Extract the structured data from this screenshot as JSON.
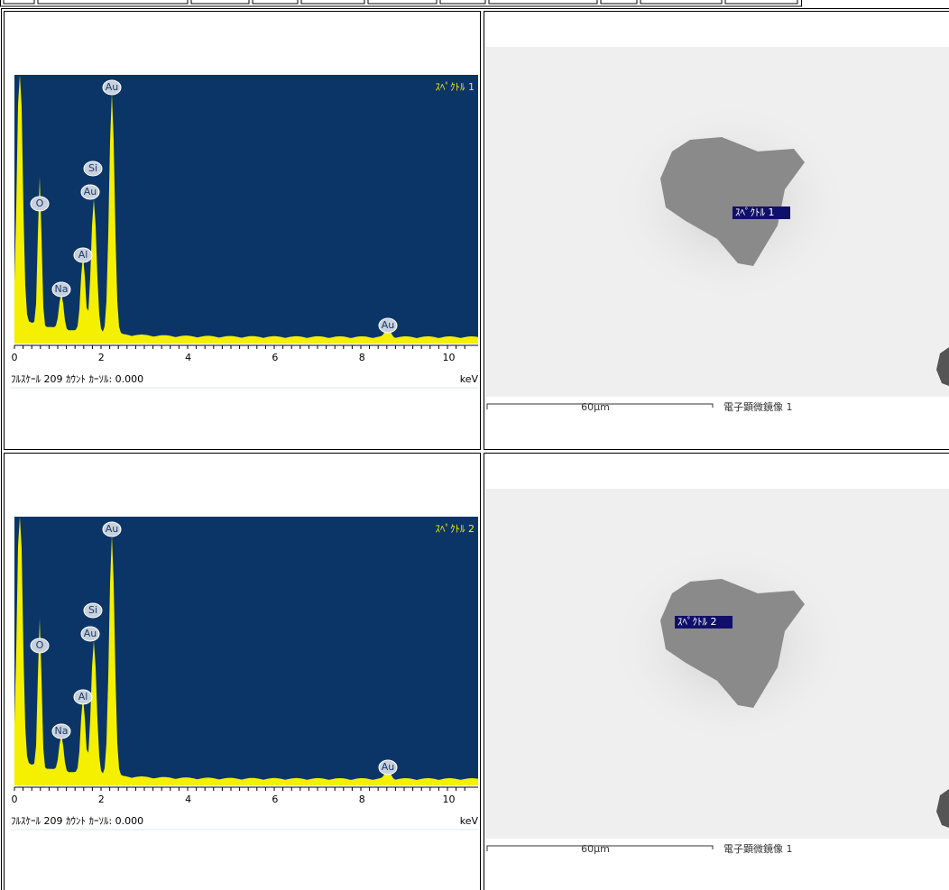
{
  "rows": [
    {
      "spectrum": {
        "title": "ｽﾍﾟｸﾄﾙ 1",
        "peaks": [
          "Au",
          "Si",
          "Au",
          "O",
          "Al",
          "Na",
          "Au"
        ],
        "x_ticks": [
          "0",
          "2",
          "4",
          "6",
          "8",
          "10"
        ],
        "footer": "ﾌﾙｽｹｰﾙ 209 ｶｳﾝﾄ ｶｰｿﾙ: 0.000",
        "unit": "keV"
      },
      "image": {
        "label": "ｽﾍﾟｸﾄﾙ 1",
        "scale": "60µm",
        "caption": "電子顕微鏡像 1"
      }
    },
    {
      "spectrum": {
        "title": "ｽﾍﾟｸﾄﾙ 2",
        "peaks": [
          "Au",
          "Si",
          "Au",
          "O",
          "Al",
          "Na",
          "Au"
        ],
        "x_ticks": [
          "0",
          "2",
          "4",
          "6",
          "8",
          "10"
        ],
        "footer": "ﾌﾙｽｹｰﾙ 209 ｶｳﾝﾄ ｶｰｿﾙ: 0.000",
        "unit": "keV"
      },
      "image": {
        "label": "ｽﾍﾟｸﾄﾙ 2",
        "scale": "60µm",
        "caption": "電子顕微鏡像 1"
      }
    }
  ]
}
